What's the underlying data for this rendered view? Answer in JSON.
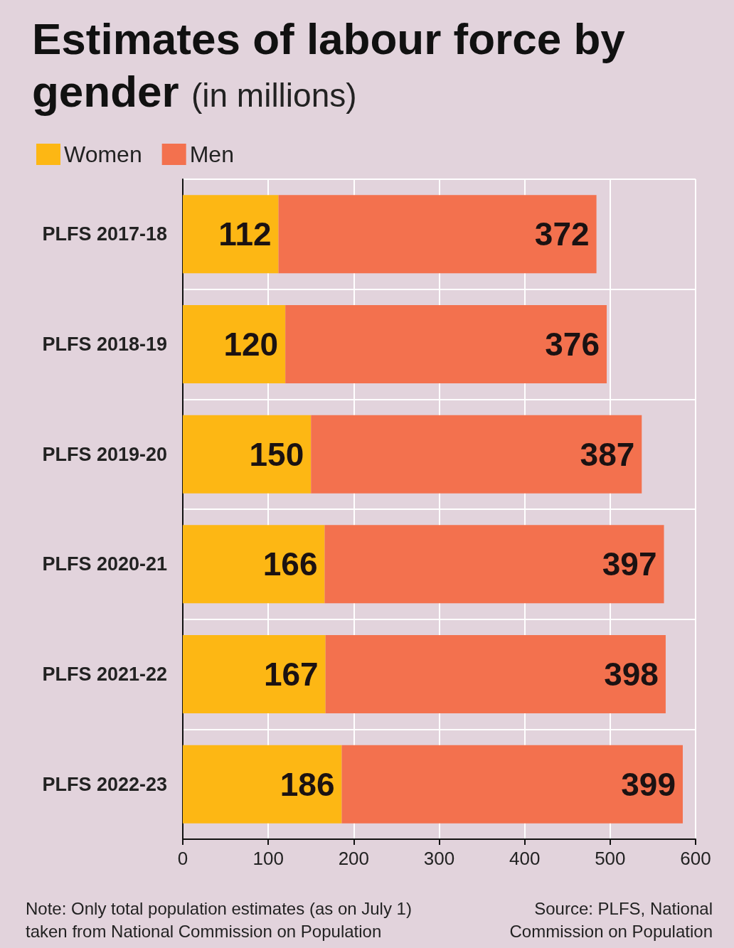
{
  "chart_data": {
    "type": "bar",
    "orientation": "horizontal",
    "stacked": true,
    "title": "Estimates of labour force by gender",
    "subtitle": "(in millions)",
    "categories": [
      "PLFS 2017-18",
      "PLFS 2018-19",
      "PLFS 2019-20",
      "PLFS 2020-21",
      "PLFS 2021-22",
      "PLFS 2022-23"
    ],
    "series": [
      {
        "name": "Women",
        "color": "#fdb714",
        "values": [
          112,
          120,
          150,
          166,
          167,
          186
        ]
      },
      {
        "name": "Men",
        "color": "#f3714e",
        "values": [
          372,
          376,
          387,
          397,
          398,
          399
        ]
      }
    ],
    "xlim": [
      0,
      600
    ],
    "xticks": [
      0,
      100,
      200,
      300,
      400,
      500,
      600
    ],
    "grid": true,
    "legend": "top left",
    "data_labels": true,
    "annotations": [
      "Note: Only total population estimates (as on July 1) taken from National Commission on Population",
      "Source: PLFS, National Commission on Population"
    ]
  }
}
